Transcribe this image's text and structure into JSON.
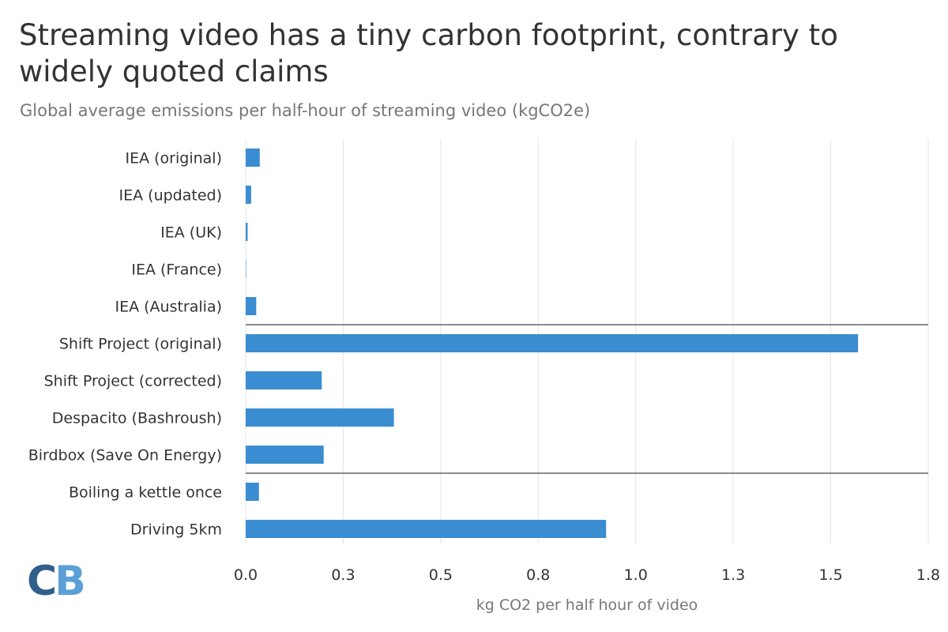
{
  "chart_data": {
    "type": "bar",
    "orientation": "horizontal",
    "title": "Streaming video has a tiny carbon footprint, contrary to widely quoted claims",
    "subtitle": "Global average emissions per half-hour of streaming video (kgCO2e)",
    "xlabel": "kg CO2 per half hour of video",
    "ylabel": "",
    "xlim": [
      0,
      1.75
    ],
    "ticks": [
      0.0,
      0.25,
      0.5,
      0.75,
      1.0,
      1.25,
      1.5,
      1.75
    ],
    "tick_labels": [
      "0.0",
      "0.3",
      "0.5",
      "0.8",
      "1.0",
      "1.3",
      "1.5",
      "1.8"
    ],
    "grid": true,
    "bar_color": "#3a8dd0",
    "categories": [
      "IEA (original)",
      "IEA (updated)",
      "IEA (UK)",
      "IEA (France)",
      "IEA (Australia)",
      "Shift Project (original)",
      "Shift Project (corrected)",
      "Despacito (Bashroush)",
      "Birdbox (Save On Energy)",
      "Boiling a kettle once",
      "Driving 5km"
    ],
    "values": [
      0.036,
      0.014,
      0.005,
      0.001,
      0.027,
      1.57,
      0.195,
      0.38,
      0.2,
      0.034,
      0.924
    ],
    "group_separators_after": [
      4,
      8
    ]
  },
  "logo": {
    "letter1": "C",
    "letter2": "B",
    "color1": "#2f5f8a",
    "color2": "#5aa0d6"
  }
}
